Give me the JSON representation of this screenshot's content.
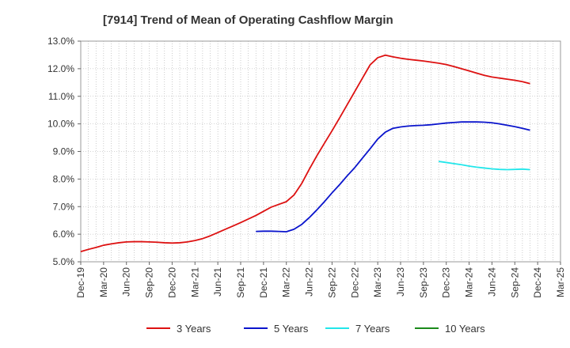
{
  "chart_data": {
    "type": "line",
    "title": "[7914]  Trend of Mean of Operating Cashflow Margin",
    "xlabel": "",
    "ylabel": "",
    "ylim": [
      5.0,
      13.0
    ],
    "y_ticks": [
      "5.0%",
      "6.0%",
      "7.0%",
      "8.0%",
      "9.0%",
      "10.0%",
      "11.0%",
      "12.0%",
      "13.0%"
    ],
    "y_tick_values": [
      5,
      6,
      7,
      8,
      9,
      10,
      11,
      12,
      13
    ],
    "x_range": [
      "2019-12",
      "2025-03"
    ],
    "x_ticks": [
      "Dec-19",
      "Mar-20",
      "Jun-20",
      "Sep-20",
      "Dec-20",
      "Mar-21",
      "Jun-21",
      "Sep-21",
      "Dec-21",
      "Mar-22",
      "Jun-22",
      "Sep-22",
      "Dec-22",
      "Mar-23",
      "Jun-23",
      "Sep-23",
      "Dec-23",
      "Mar-24",
      "Jun-24",
      "Sep-24",
      "Dec-24",
      "Mar-25"
    ],
    "x_tick_values": [
      "2019-12",
      "2020-03",
      "2020-06",
      "2020-09",
      "2020-12",
      "2021-03",
      "2021-06",
      "2021-09",
      "2021-12",
      "2022-03",
      "2022-06",
      "2022-09",
      "2022-12",
      "2023-03",
      "2023-06",
      "2023-09",
      "2023-12",
      "2024-03",
      "2024-06",
      "2024-09",
      "2024-12",
      "2025-03"
    ],
    "grid": true,
    "legend_position": "bottom",
    "series": [
      {
        "name": "3 Years",
        "color": "#dd1111",
        "points": [
          [
            "2019-12",
            5.37
          ],
          [
            "2020-01",
            5.45
          ],
          [
            "2020-02",
            5.52
          ],
          [
            "2020-03",
            5.6
          ],
          [
            "2020-04",
            5.65
          ],
          [
            "2020-05",
            5.69
          ],
          [
            "2020-06",
            5.72
          ],
          [
            "2020-07",
            5.73
          ],
          [
            "2020-08",
            5.73
          ],
          [
            "2020-09",
            5.72
          ],
          [
            "2020-10",
            5.71
          ],
          [
            "2020-11",
            5.69
          ],
          [
            "2020-12",
            5.68
          ],
          [
            "2021-01",
            5.69
          ],
          [
            "2021-02",
            5.72
          ],
          [
            "2021-03",
            5.77
          ],
          [
            "2021-04",
            5.84
          ],
          [
            "2021-05",
            5.94
          ],
          [
            "2021-06",
            6.06
          ],
          [
            "2021-07",
            6.18
          ],
          [
            "2021-08",
            6.3
          ],
          [
            "2021-09",
            6.42
          ],
          [
            "2021-10",
            6.55
          ],
          [
            "2021-11",
            6.68
          ],
          [
            "2021-12",
            6.83
          ],
          [
            "2022-01",
            6.98
          ],
          [
            "2022-02",
            7.08
          ],
          [
            "2022-03",
            7.18
          ],
          [
            "2022-04",
            7.42
          ],
          [
            "2022-05",
            7.83
          ],
          [
            "2022-06",
            8.35
          ],
          [
            "2022-07",
            8.84
          ],
          [
            "2022-08",
            9.3
          ],
          [
            "2022-09",
            9.75
          ],
          [
            "2022-10",
            10.22
          ],
          [
            "2022-11",
            10.7
          ],
          [
            "2022-12",
            11.18
          ],
          [
            "2023-01",
            11.66
          ],
          [
            "2023-02",
            12.14
          ],
          [
            "2023-03",
            12.4
          ],
          [
            "2023-04",
            12.49
          ],
          [
            "2023-05",
            12.43
          ],
          [
            "2023-06",
            12.38
          ],
          [
            "2023-07",
            12.34
          ],
          [
            "2023-08",
            12.31
          ],
          [
            "2023-09",
            12.28
          ],
          [
            "2023-10",
            12.24
          ],
          [
            "2023-11",
            12.2
          ],
          [
            "2023-12",
            12.15
          ],
          [
            "2024-01",
            12.08
          ],
          [
            "2024-02",
            12.0
          ],
          [
            "2024-03",
            11.92
          ],
          [
            "2024-04",
            11.84
          ],
          [
            "2024-05",
            11.76
          ],
          [
            "2024-06",
            11.7
          ],
          [
            "2024-07",
            11.66
          ],
          [
            "2024-08",
            11.62
          ],
          [
            "2024-09",
            11.58
          ],
          [
            "2024-10",
            11.53
          ],
          [
            "2024-11",
            11.46
          ]
        ]
      },
      {
        "name": "5 Years",
        "color": "#0a14cc",
        "points": [
          [
            "2021-11",
            6.1
          ],
          [
            "2021-12",
            6.11
          ],
          [
            "2022-01",
            6.11
          ],
          [
            "2022-02",
            6.1
          ],
          [
            "2022-03",
            6.09
          ],
          [
            "2022-04",
            6.18
          ],
          [
            "2022-05",
            6.35
          ],
          [
            "2022-06",
            6.6
          ],
          [
            "2022-07",
            6.88
          ],
          [
            "2022-08",
            7.18
          ],
          [
            "2022-09",
            7.5
          ],
          [
            "2022-10",
            7.8
          ],
          [
            "2022-11",
            8.12
          ],
          [
            "2022-12",
            8.42
          ],
          [
            "2023-01",
            8.76
          ],
          [
            "2023-02",
            9.1
          ],
          [
            "2023-03",
            9.45
          ],
          [
            "2023-04",
            9.7
          ],
          [
            "2023-05",
            9.84
          ],
          [
            "2023-06",
            9.89
          ],
          [
            "2023-07",
            9.92
          ],
          [
            "2023-08",
            9.94
          ],
          [
            "2023-09",
            9.95
          ],
          [
            "2023-10",
            9.97
          ],
          [
            "2023-11",
            10.0
          ],
          [
            "2023-12",
            10.03
          ],
          [
            "2024-01",
            10.05
          ],
          [
            "2024-02",
            10.07
          ],
          [
            "2024-03",
            10.07
          ],
          [
            "2024-04",
            10.07
          ],
          [
            "2024-05",
            10.06
          ],
          [
            "2024-06",
            10.04
          ],
          [
            "2024-07",
            10.0
          ],
          [
            "2024-08",
            9.95
          ],
          [
            "2024-09",
            9.9
          ],
          [
            "2024-10",
            9.84
          ],
          [
            "2024-11",
            9.77
          ]
        ]
      },
      {
        "name": "7 Years",
        "color": "#22e6ea",
        "points": [
          [
            "2023-11",
            8.64
          ],
          [
            "2023-12",
            8.6
          ],
          [
            "2024-01",
            8.56
          ],
          [
            "2024-02",
            8.52
          ],
          [
            "2024-03",
            8.47
          ],
          [
            "2024-04",
            8.43
          ],
          [
            "2024-05",
            8.4
          ],
          [
            "2024-06",
            8.37
          ],
          [
            "2024-07",
            8.35
          ],
          [
            "2024-08",
            8.34
          ],
          [
            "2024-09",
            8.35
          ],
          [
            "2024-10",
            8.36
          ],
          [
            "2024-11",
            8.34
          ]
        ]
      },
      {
        "name": "10 Years",
        "color": "#1a8a1a",
        "points": []
      }
    ]
  }
}
